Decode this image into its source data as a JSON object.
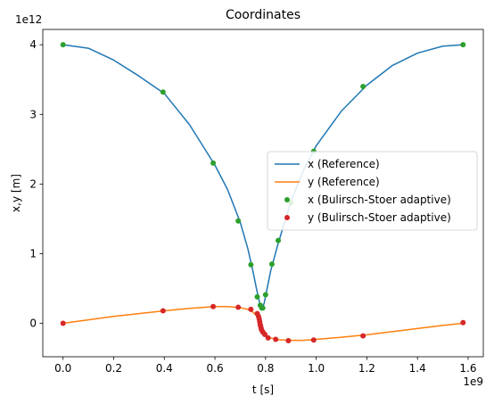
{
  "chart_data": {
    "type": "line",
    "title": "Coordinates",
    "xlabel": "t [s]",
    "ylabel": "x,y [m]",
    "x_offset_label": "1e9",
    "y_offset_label": "1e12",
    "xlim": [
      -0.08,
      1.66
    ],
    "ylim": [
      -0.48,
      4.22
    ],
    "x_ticks": [
      0.0,
      0.2,
      0.4,
      0.6,
      0.8,
      1.0,
      1.2,
      1.4,
      1.6
    ],
    "x_tick_labels": [
      "0.0",
      "0.2",
      "0.4",
      "0.6",
      "0.8",
      "1.0",
      "1.2",
      "1.4",
      "1.6"
    ],
    "y_ticks": [
      0,
      1,
      2,
      3,
      4
    ],
    "y_tick_labels": [
      "0",
      "1",
      "2",
      "3",
      "4"
    ],
    "grid": false,
    "legend_position": "center-right",
    "series": [
      {
        "name": "x (Reference)",
        "style": "line",
        "color": "#1f77b4",
        "x": [
          0.0,
          0.1,
          0.2,
          0.3,
          0.4,
          0.5,
          0.6,
          0.65,
          0.7,
          0.73,
          0.75,
          0.765,
          0.775,
          0.782,
          0.788,
          0.795,
          0.805,
          0.82,
          0.85,
          0.9,
          0.95,
          1.0,
          1.1,
          1.2,
          1.3,
          1.4,
          1.5,
          1.58
        ],
        "y": [
          4.0,
          3.95,
          3.78,
          3.55,
          3.3,
          2.85,
          2.27,
          1.92,
          1.45,
          1.07,
          0.75,
          0.48,
          0.32,
          0.22,
          0.21,
          0.3,
          0.48,
          0.75,
          1.15,
          1.75,
          2.2,
          2.55,
          3.05,
          3.42,
          3.7,
          3.88,
          3.98,
          4.0
        ]
      },
      {
        "name": "y (Reference)",
        "style": "line",
        "color": "#ff7f0e",
        "x": [
          0.0,
          0.1,
          0.2,
          0.3,
          0.4,
          0.5,
          0.6,
          0.65,
          0.7,
          0.73,
          0.75,
          0.765,
          0.775,
          0.782,
          0.79,
          0.8,
          0.82,
          0.85,
          0.9,
          0.95,
          1.0,
          1.1,
          1.2,
          1.3,
          1.4,
          1.5,
          1.58
        ],
        "y": [
          0.0,
          0.05,
          0.1,
          0.14,
          0.18,
          0.215,
          0.24,
          0.24,
          0.225,
          0.2,
          0.16,
          0.11,
          0.04,
          -0.03,
          -0.1,
          -0.16,
          -0.21,
          -0.235,
          -0.245,
          -0.245,
          -0.23,
          -0.2,
          -0.165,
          -0.12,
          -0.075,
          -0.03,
          0.0
        ]
      },
      {
        "name": "x (Bulirsch-Stoer adaptive)",
        "style": "points",
        "color": "#2ca02c",
        "x": [
          0.0,
          0.395,
          0.593,
          0.692,
          0.742,
          0.767,
          0.779,
          0.785,
          0.789,
          0.8,
          0.825,
          0.85,
          0.9,
          0.99,
          1.185,
          1.58
        ],
        "y": [
          4.0,
          3.32,
          2.3,
          1.47,
          0.84,
          0.38,
          0.26,
          0.22,
          0.22,
          0.41,
          0.85,
          1.19,
          1.73,
          2.47,
          3.4,
          4.0
        ]
      },
      {
        "name": "y (Bulirsch-Stoer adaptive)",
        "style": "points",
        "color": "#d62728",
        "x": [
          0.0,
          0.395,
          0.593,
          0.692,
          0.742,
          0.767,
          0.772,
          0.775,
          0.777,
          0.779,
          0.781,
          0.783,
          0.785,
          0.79,
          0.797,
          0.81,
          0.84,
          0.89,
          0.99,
          1.185,
          1.58
        ],
        "y": [
          0.0,
          0.18,
          0.24,
          0.23,
          0.2,
          0.14,
          0.1,
          0.06,
          0.02,
          -0.02,
          -0.05,
          -0.08,
          -0.1,
          -0.13,
          -0.16,
          -0.21,
          -0.23,
          -0.25,
          -0.24,
          -0.18,
          0.01
        ]
      }
    ]
  }
}
